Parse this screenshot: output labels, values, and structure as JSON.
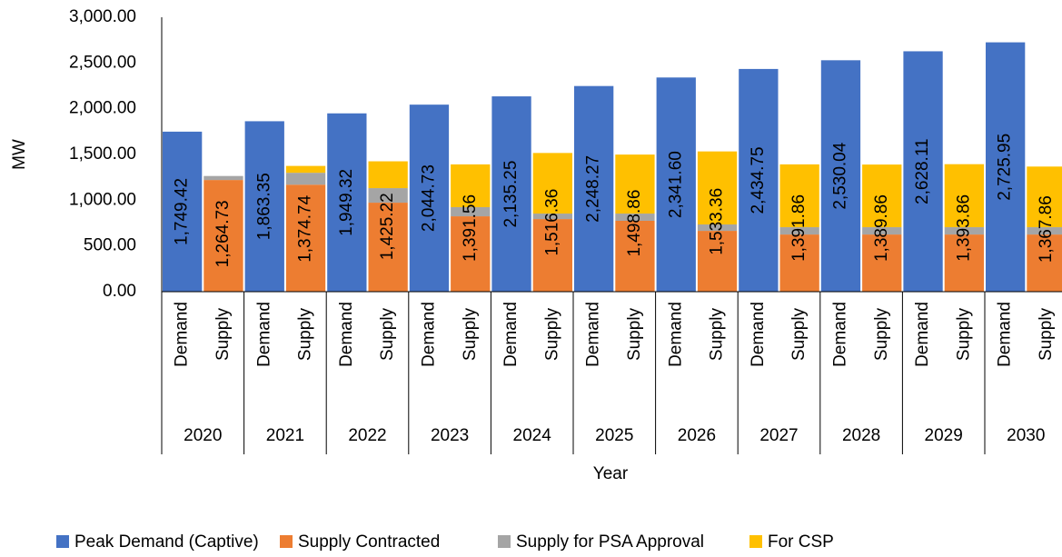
{
  "chart_data": {
    "type": "stacked_bar",
    "y_label": "MW",
    "x_label": "Year",
    "groups": [
      "2020",
      "2021",
      "2022",
      "2023",
      "2024",
      "2025",
      "2026",
      "2027",
      "2028",
      "2029",
      "2030"
    ],
    "categories": [
      "Demand",
      "Supply",
      "Demand",
      "Supply",
      "Demand",
      "Supply",
      "Demand",
      "Supply",
      "Demand",
      "Supply",
      "Demand",
      "Supply",
      "Demand",
      "Supply",
      "Demand",
      "Supply",
      "Demand",
      "Supply",
      "Demand",
      "Supply",
      "Demand",
      "Supply"
    ],
    "series": [
      {
        "name": "Peak Demand (Captive)",
        "color": "#4472c4",
        "values": [
          1749.42,
          null,
          1863.35,
          null,
          1949.32,
          null,
          2044.73,
          null,
          2135.25,
          null,
          2248.27,
          null,
          2341.6,
          null,
          2434.75,
          null,
          2530.04,
          null,
          2628.11,
          null,
          2725.95,
          null
        ]
      },
      {
        "name": "Supply Contracted",
        "color": "#ed7d31",
        "values": [
          null,
          1221,
          null,
          1170,
          null,
          973,
          null,
          824,
          null,
          794,
          null,
          775,
          null,
          665,
          null,
          625,
          null,
          625,
          null,
          625,
          null,
          625
        ]
      },
      {
        "name": "Supply for PSA Approval",
        "color": "#a5a5a5",
        "values": [
          null,
          43.73,
          null,
          130,
          null,
          159,
          null,
          100,
          null,
          60,
          null,
          79,
          null,
          70,
          null,
          80,
          null,
          80,
          null,
          80,
          null,
          80
        ]
      },
      {
        "name": "For CSP",
        "color": "#ffc000",
        "values": [
          null,
          0,
          null,
          74.74,
          null,
          293.22,
          null,
          467.56,
          null,
          662.36,
          null,
          644.86,
          null,
          798.36,
          null,
          686.86,
          null,
          684.86,
          null,
          688.86,
          null,
          662.86
        ]
      }
    ],
    "data_labels": [
      "1,749.42",
      "1,264.73",
      "1,863.35",
      "1,374.74",
      "1,949.32",
      "1,425.22",
      "2,044.73",
      "1,391.56",
      "2,135.25",
      "1,516.36",
      "2,248.27",
      "1,498.86",
      "2,341.60",
      "1,533.36",
      "2,434.75",
      "1,391.86",
      "2,530.04",
      "1,389.86",
      "2,628.11",
      "1,393.86",
      "2,725.95",
      "1,367.86"
    ],
    "ylim": [
      0,
      3000
    ],
    "yticks": [
      {
        "value": 0,
        "label": "0.00"
      },
      {
        "value": 500,
        "label": "500.00"
      },
      {
        "value": 1000,
        "label": "1,000.00"
      },
      {
        "value": 1500,
        "label": "1,500.00"
      },
      {
        "value": 2000,
        "label": "2,000.00"
      },
      {
        "value": 2500,
        "label": "2,500.00"
      },
      {
        "value": 3000,
        "label": "3,000.00"
      }
    ],
    "legend": "bottom"
  }
}
